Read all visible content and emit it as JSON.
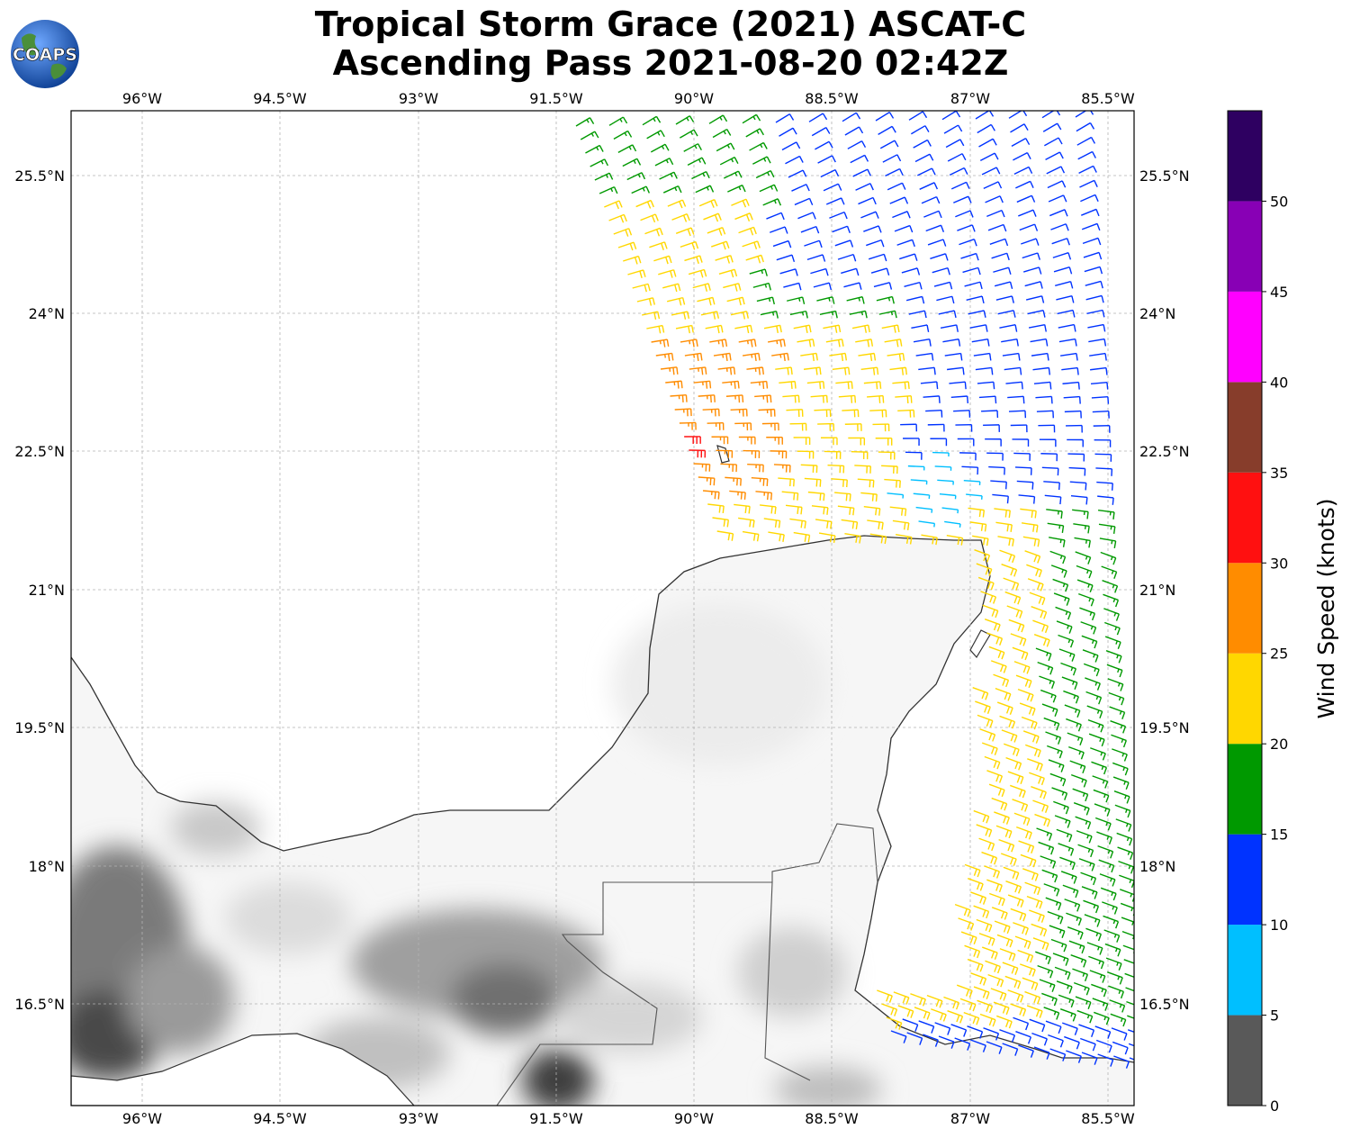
{
  "title": {
    "line1": "Tropical Storm Grace (2021) ASCAT-C",
    "line2": "Ascending Pass 2021-08-20 02:42Z"
  },
  "logo": {
    "text": "COAPS",
    "icon": "globe-icon"
  },
  "map": {
    "lon_range": [
      -96.75,
      -85.25
    ],
    "lat_range": [
      15.25,
      26.0
    ],
    "lon_ticks": [
      "96°W",
      "94.5°W",
      "93°W",
      "91.5°W",
      "90°W",
      "88.5°W",
      "87°W",
      "85.5°W"
    ],
    "lat_ticks": [
      "25.5°N",
      "24°N",
      "22.5°N",
      "21°N",
      "19.5°N",
      "18°N",
      "16.5°N"
    ],
    "gridlines": true,
    "product": "wind barbs",
    "background": "grayscale topography"
  },
  "colorbar": {
    "label": "Wind Speed (knots)",
    "ticks": [
      "0",
      "5",
      "10",
      "15",
      "20",
      "25",
      "30",
      "35",
      "40",
      "45",
      "50"
    ],
    "bins": [
      {
        "min": 0,
        "max": 5,
        "color": "#595959"
      },
      {
        "min": 5,
        "max": 10,
        "color": "#00bfff"
      },
      {
        "min": 10,
        "max": 15,
        "color": "#0033ff"
      },
      {
        "min": 15,
        "max": 20,
        "color": "#009900"
      },
      {
        "min": 20,
        "max": 25,
        "color": "#ffd700"
      },
      {
        "min": 25,
        "max": 30,
        "color": "#ff8c00"
      },
      {
        "min": 30,
        "max": 35,
        "color": "#ff1010"
      },
      {
        "min": 35,
        "max": 40,
        "color": "#873d2b"
      },
      {
        "min": 40,
        "max": 45,
        "color": "#ff00ff"
      },
      {
        "min": 45,
        "max": 50,
        "color": "#8800b5"
      },
      {
        "min": 50,
        "max": 55,
        "color": "#2e0061"
      }
    ]
  }
}
